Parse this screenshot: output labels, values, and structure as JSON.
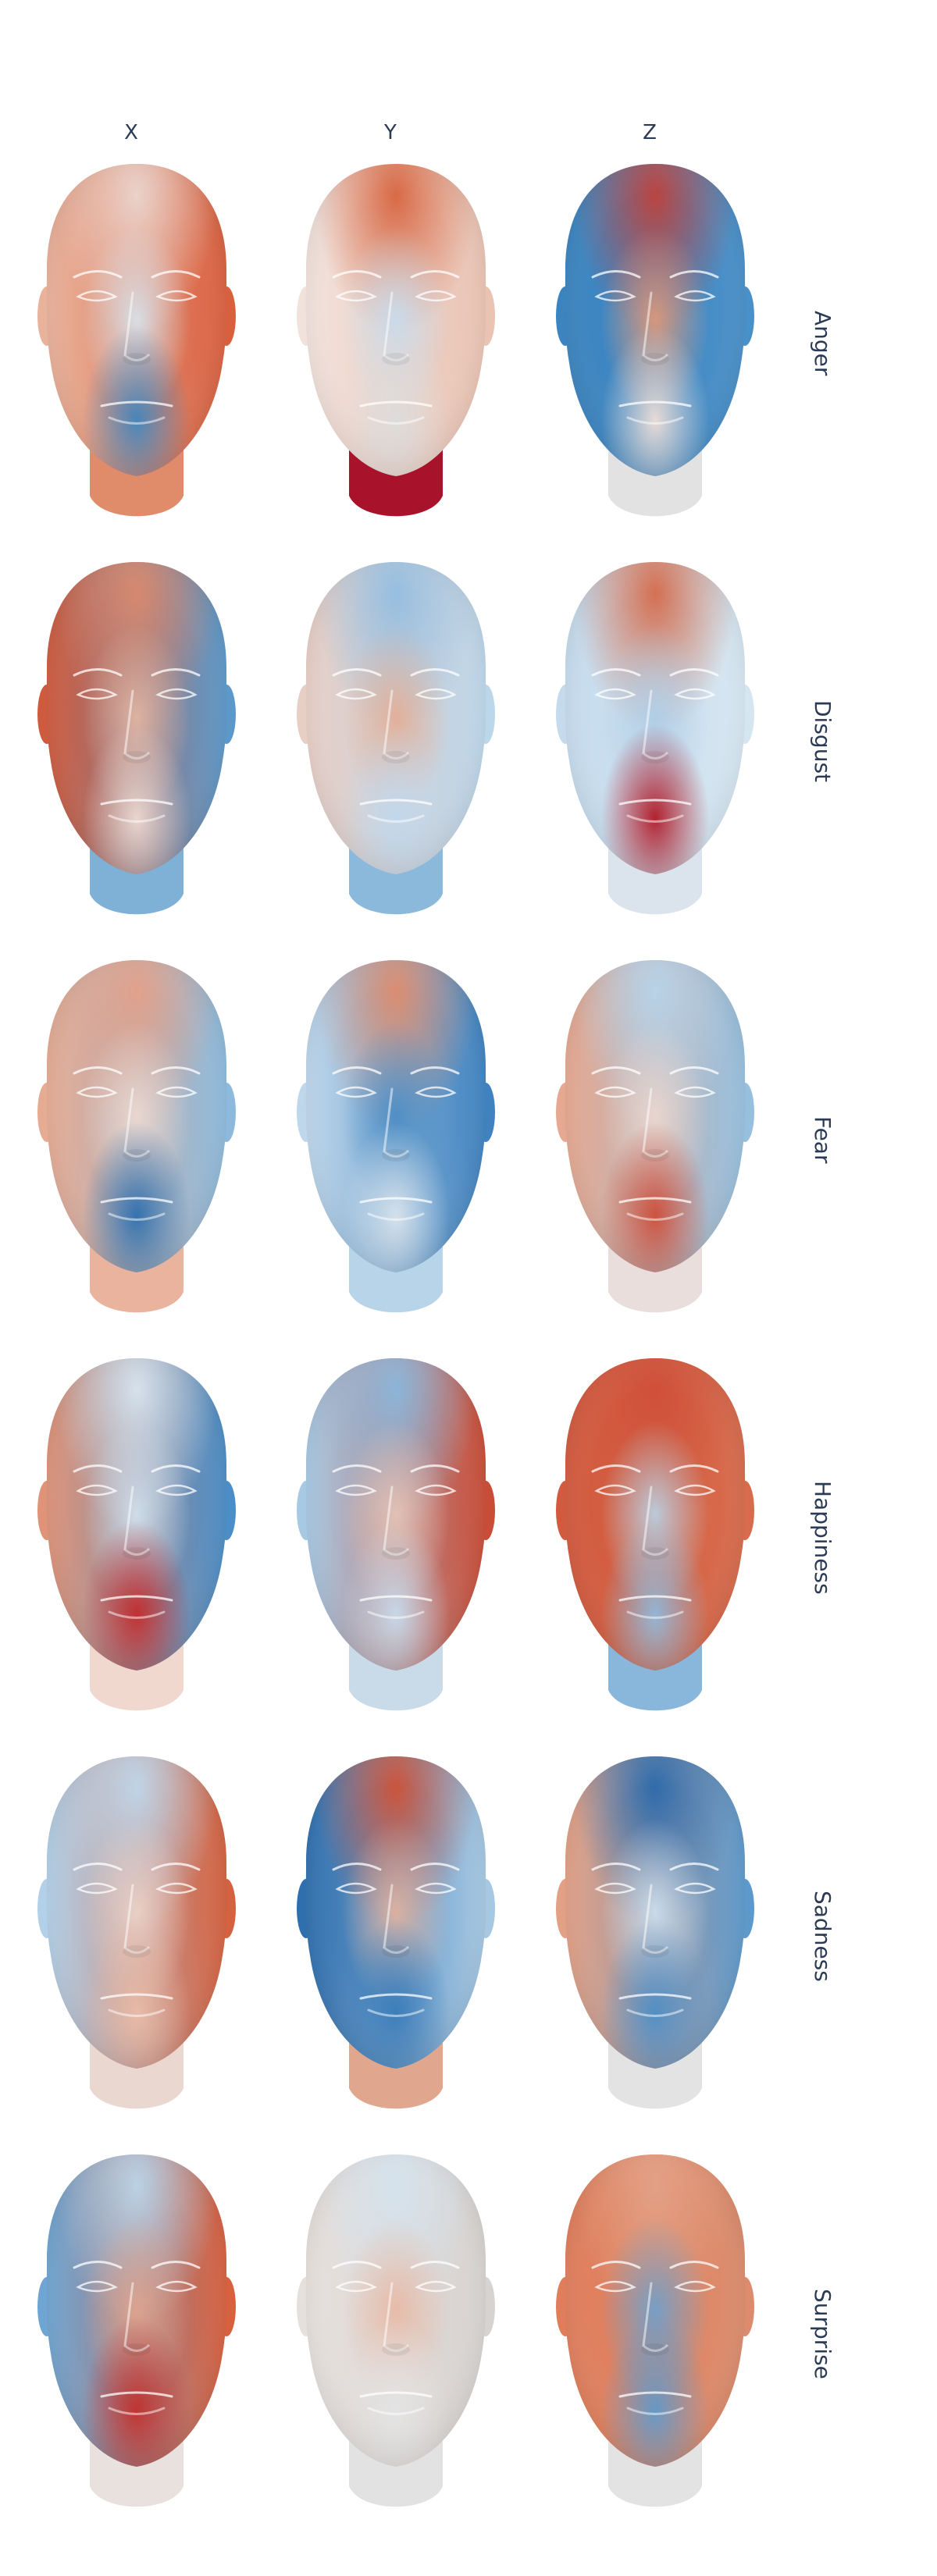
{
  "columns": [
    "X",
    "Y",
    "Z"
  ],
  "rows": [
    {
      "label": "Anger",
      "cells": [
        {
          "left": "#e9b29b",
          "right": "#d9603f",
          "top": "#ead6cf",
          "mid": "#d6e6f1",
          "chin": "#3f86bf",
          "neck": "#e08c6a"
        },
        {
          "left": "#f1e2dc",
          "right": "#eac3b3",
          "top": "#d7643f",
          "mid": "#c6dcee",
          "chin": "#dcdcdc",
          "neck": "#a8122b"
        },
        {
          "left": "#3b84c0",
          "right": "#4a90c8",
          "top": "#c0413a",
          "mid": "#e59a78",
          "chin": "#f0dfd8",
          "neck": "#e2e2e2"
        }
      ]
    },
    {
      "label": "Disgust",
      "cells": [
        {
          "left": "#cf5b3e",
          "right": "#5c98c9",
          "top": "#d98a6f",
          "mid": "#e4b9a6",
          "chin": "#eedad1",
          "neck": "#7fb0d6"
        },
        {
          "left": "#e7cfc6",
          "right": "#bcd6ea",
          "top": "#93bde0",
          "mid": "#e3ad94",
          "chin": "#c1d8ec",
          "neck": "#8ab9dc"
        },
        {
          "left": "#c5dbed",
          "right": "#d6e6f1",
          "top": "#d46a4a",
          "mid": "#aecde6",
          "chin": "#b01826",
          "neck": "#dbe4ec"
        }
      ]
    },
    {
      "label": "Fear",
      "cells": [
        {
          "left": "#e6ab93",
          "right": "#8dbadc",
          "top": "#e2a089",
          "mid": "#eddbd3",
          "chin": "#2d6fae",
          "neck": "#e9b39d"
        },
        {
          "left": "#bfd7eb",
          "right": "#3f82bf",
          "top": "#e08c6c",
          "mid": "#4a8cc4",
          "chin": "#d8e3ec",
          "neck": "#b8d4e8"
        },
        {
          "left": "#e6a890",
          "right": "#97c0df",
          "top": "#b7d4ea",
          "mid": "#ecd9d0",
          "chin": "#cd4d39",
          "neck": "#eadedd"
        }
      ]
    },
    {
      "label": "Happiness",
      "cells": [
        {
          "left": "#df9379",
          "right": "#4b8dc6",
          "top": "#d9e6f0",
          "mid": "#d4e4f0",
          "chin": "#c32b2c",
          "neck": "#f0d8ce"
        },
        {
          "left": "#a7c9e4",
          "right": "#c94c36",
          "top": "#8ab7dc",
          "mid": "#e7c7b9",
          "chin": "#c9dcec",
          "neck": "#c9dbe8"
        },
        {
          "left": "#d25a3e",
          "right": "#d86b4c",
          "top": "#cf4f38",
          "mid": "#b9d5ea",
          "chin": "#8fbadc",
          "neck": "#88b7db"
        }
      ]
    },
    {
      "label": "Sadness",
      "cells": [
        {
          "left": "#b2d0e8",
          "right": "#d4613f",
          "top": "#bfd7ea",
          "mid": "#edd5cb",
          "chin": "#e9bca8",
          "neck": "#ead7cf"
        },
        {
          "left": "#2f6fae",
          "right": "#a6c8e3",
          "top": "#cf5136",
          "mid": "#e6b49f",
          "chin": "#3a7cb9",
          "neck": "#e0a68e"
        },
        {
          "left": "#e2a085",
          "right": "#5d99cb",
          "top": "#2a69ab",
          "mid": "#cfe1ef",
          "chin": "#4e8ec6",
          "neck": "#e3e3e3"
        }
      ]
    },
    {
      "label": "Surprise",
      "cells": [
        {
          "left": "#6fa5d2",
          "right": "#d7603f",
          "top": "#bcd6ea",
          "mid": "#e2a68e",
          "chin": "#c0302d",
          "neck": "#e9e1dd"
        },
        {
          "left": "#e6e0dd",
          "right": "#d7d3d1",
          "top": "#d4e3ee",
          "mid": "#e8b8a3",
          "chin": "#e4e4e4",
          "neck": "#e2e2e2"
        },
        {
          "left": "#e07e5c",
          "right": "#dc8c6d",
          "top": "#e3a287",
          "mid": "#6aa1d0",
          "chin": "#5f99cb",
          "neck": "#e3e3e3"
        }
      ]
    }
  ]
}
